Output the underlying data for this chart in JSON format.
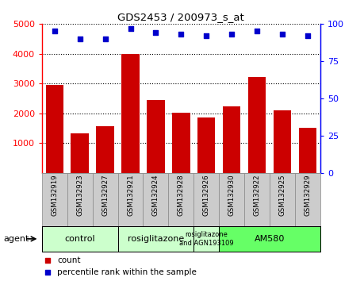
{
  "title": "GDS2453 / 200973_s_at",
  "samples": [
    "GSM132919",
    "GSM132923",
    "GSM132927",
    "GSM132921",
    "GSM132924",
    "GSM132928",
    "GSM132926",
    "GSM132930",
    "GSM132922",
    "GSM132925",
    "GSM132929"
  ],
  "counts": [
    2950,
    1320,
    1560,
    4000,
    2450,
    2020,
    1860,
    2220,
    3220,
    2100,
    1510
  ],
  "percentiles": [
    95,
    90,
    90,
    97,
    94,
    93,
    92,
    93,
    95,
    93,
    92
  ],
  "bar_color": "#cc0000",
  "dot_color": "#0000cc",
  "ylim_left": [
    0,
    5000
  ],
  "ylim_right": [
    0,
    100
  ],
  "yticks_left": [
    1000,
    2000,
    3000,
    4000,
    5000
  ],
  "yticks_right": [
    0,
    25,
    50,
    75,
    100
  ],
  "group_starts": [
    0,
    3,
    6,
    7
  ],
  "group_ends": [
    3,
    6,
    7,
    11
  ],
  "group_labels": [
    "control",
    "rosiglitazone",
    "rosiglitazone\nand AGN193109",
    "AM580"
  ],
  "group_colors": [
    "#ccffcc",
    "#ccffcc",
    "#ccffcc",
    "#66ff66"
  ],
  "agent_label": "agent",
  "legend_count_label": "count",
  "legend_percentile_label": "percentile rank within the sample",
  "xticklabel_bg": "#cccccc",
  "xticklabel_border": "#888888"
}
